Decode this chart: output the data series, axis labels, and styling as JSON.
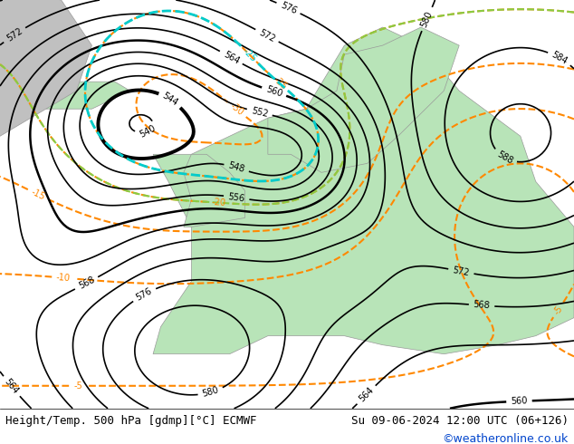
{
  "title_left": "Height/Temp. 500 hPa [gdmp][°C] ECMWF",
  "title_right": "Su 09-06-2024 12:00 UTC (06+126)",
  "credit": "©weatheronline.co.uk",
  "bg_color": "#d0d0d0",
  "land_green_color": "#b8e4b8",
  "land_gray_color": "#c8c8c8",
  "sea_color": "#d8d8e8",
  "contour_black_color": "#000000",
  "contour_orange_color": "#ff8800",
  "contour_teal_color": "#00cccc",
  "contour_green_color": "#88cc44",
  "label_color": "#000000",
  "figsize": [
    6.34,
    4.9
  ],
  "dpi": 100,
  "footer_fontsize": 9,
  "credit_fontsize": 9,
  "credit_color": "#0044cc"
}
